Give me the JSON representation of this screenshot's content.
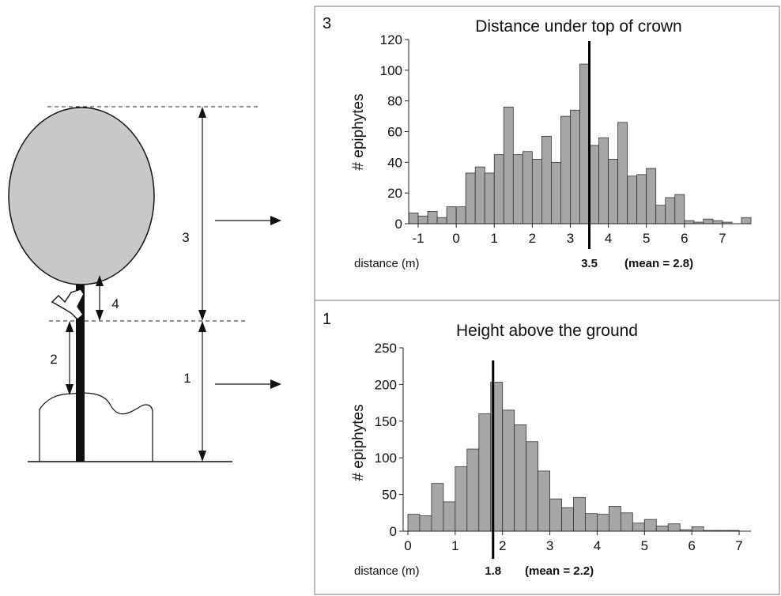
{
  "diagram": {
    "labels": [
      "3",
      "4",
      "2",
      "1"
    ]
  },
  "chart_data": [
    {
      "type": "bar",
      "panel_label": "3",
      "title": "Distance under top of crown",
      "xlabel": "distance (m)",
      "ylabel": "# epiphytes",
      "xlim": [
        -1.25,
        7.75
      ],
      "ylim": [
        0,
        120
      ],
      "x_ticks": [
        -1,
        0,
        1,
        2,
        3,
        4,
        5,
        6,
        7
      ],
      "y_ticks": [
        0,
        20,
        40,
        60,
        80,
        100,
        120
      ],
      "bin_width": 0.25,
      "x": [
        -1.125,
        -0.875,
        -0.625,
        -0.375,
        -0.125,
        0.125,
        0.375,
        0.625,
        0.875,
        1.125,
        1.375,
        1.625,
        1.875,
        2.125,
        2.375,
        2.625,
        2.875,
        3.125,
        3.375,
        3.625,
        3.875,
        4.125,
        4.375,
        4.625,
        4.875,
        5.125,
        5.375,
        5.625,
        5.875,
        6.125,
        6.375,
        6.625,
        6.875,
        7.125,
        7.375,
        7.625
      ],
      "values": [
        7,
        5,
        8,
        4,
        11,
        11,
        33,
        37,
        33,
        45,
        76,
        45,
        47,
        42,
        57,
        40,
        70,
        74,
        104,
        51,
        56,
        42,
        66,
        31,
        32,
        36,
        12,
        17,
        19,
        2,
        1,
        3,
        2,
        1,
        0,
        4
      ],
      "marker": {
        "x": 3.5,
        "label": "3.5"
      },
      "mean_label": "(mean = 2.8)"
    },
    {
      "type": "bar",
      "panel_label": "1",
      "title": "Height above the ground",
      "xlabel": "distance (m)",
      "ylabel": "# epiphytes",
      "xlim": [
        -0.1,
        7.25
      ],
      "ylim": [
        0,
        250
      ],
      "x_ticks": [
        0,
        1,
        2,
        3,
        4,
        5,
        6,
        7
      ],
      "y_ticks": [
        0,
        50,
        100,
        150,
        200,
        250
      ],
      "bin_width": 0.25,
      "x": [
        0.125,
        0.375,
        0.625,
        0.875,
        1.125,
        1.375,
        1.625,
        1.875,
        2.125,
        2.375,
        2.625,
        2.875,
        3.125,
        3.375,
        3.625,
        3.875,
        4.125,
        4.375,
        4.625,
        4.875,
        5.125,
        5.375,
        5.625,
        5.875,
        6.125,
        6.375,
        6.625,
        6.875
      ],
      "values": [
        23,
        21,
        65,
        40,
        88,
        112,
        160,
        203,
        165,
        145,
        122,
        82,
        44,
        32,
        46,
        24,
        23,
        34,
        25,
        11,
        16,
        7,
        10,
        2,
        6,
        1,
        1,
        1
      ],
      "marker": {
        "x": 1.8,
        "label": "1.8"
      },
      "mean_label": "(mean = 2.2)"
    }
  ]
}
